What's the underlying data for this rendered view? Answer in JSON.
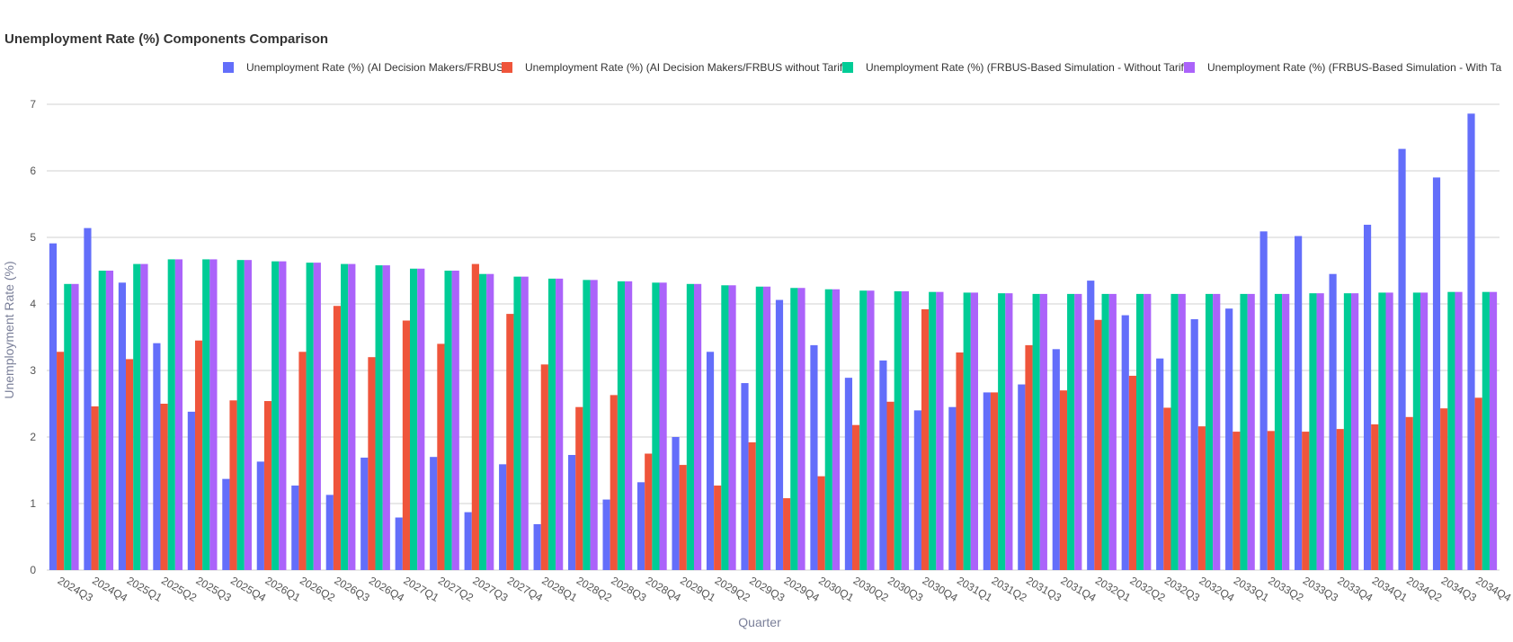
{
  "chart_data": {
    "type": "bar",
    "title": "Unemployment Rate (%) Components Comparison",
    "xlabel": "Quarter",
    "ylabel": "Unemployment Rate (%)",
    "ylim": [
      0,
      7
    ],
    "yticks": [
      "0",
      "1",
      "2",
      "3",
      "4",
      "5",
      "6",
      "7"
    ],
    "grid": true,
    "legend_position": "top",
    "categories": [
      "2024Q3",
      "2024Q4",
      "2025Q1",
      "2025Q2",
      "2025Q3",
      "2025Q4",
      "2026Q1",
      "2026Q2",
      "2026Q3",
      "2026Q4",
      "2027Q1",
      "2027Q2",
      "2027Q3",
      "2027Q4",
      "2028Q1",
      "2028Q2",
      "2028Q3",
      "2028Q4",
      "2029Q1",
      "2029Q2",
      "2029Q3",
      "2029Q4",
      "2030Q1",
      "2030Q2",
      "2030Q3",
      "2030Q4",
      "2031Q1",
      "2031Q2",
      "2031Q3",
      "2031Q4",
      "2032Q1",
      "2032Q2",
      "2032Q3",
      "2032Q4",
      "2033Q1",
      "2033Q2",
      "2033Q3",
      "2033Q4",
      "2034Q1",
      "2034Q2",
      "2034Q3",
      "2034Q4"
    ],
    "series": [
      {
        "name": "Unemployment Rate (%) (AI Decision Makers/FRBUS",
        "color": "#636efa",
        "values": [
          4.91,
          5.14,
          4.32,
          3.41,
          2.38,
          1.37,
          1.63,
          1.27,
          1.13,
          1.69,
          0.79,
          1.7,
          0.87,
          1.59,
          0.69,
          1.73,
          1.06,
          1.32,
          2.0,
          3.28,
          2.81,
          4.06,
          3.38,
          2.89,
          3.15,
          2.4,
          2.45,
          2.67,
          2.79,
          3.32,
          4.35,
          3.83,
          3.18,
          3.77,
          3.93,
          5.09,
          5.02,
          4.45,
          5.19,
          6.33,
          5.9,
          6.86
        ]
      },
      {
        "name": "Unemployment Rate (%) (AI Decision Makers/FRBUS without Tarif",
        "color": "#ef553b",
        "values": [
          3.28,
          2.46,
          3.17,
          2.5,
          3.45,
          2.55,
          2.54,
          3.28,
          3.97,
          3.2,
          3.75,
          3.4,
          4.6,
          3.85,
          3.09,
          2.45,
          2.63,
          1.75,
          1.58,
          1.27,
          1.92,
          1.08,
          1.41,
          2.18,
          2.53,
          3.92,
          3.27,
          2.67,
          3.38,
          2.7,
          3.76,
          2.92,
          2.44,
          2.16,
          2.08,
          2.09,
          2.08,
          2.12,
          2.19,
          2.3,
          2.43,
          2.59
        ]
      },
      {
        "name": "Unemployment Rate (%) (FRBUS-Based Simulation - Without Tarif",
        "color": "#00cc96",
        "values": [
          4.3,
          4.5,
          4.6,
          4.67,
          4.67,
          4.66,
          4.64,
          4.62,
          4.6,
          4.58,
          4.53,
          4.5,
          4.45,
          4.41,
          4.38,
          4.36,
          4.34,
          4.32,
          4.3,
          4.28,
          4.26,
          4.24,
          4.22,
          4.2,
          4.19,
          4.18,
          4.17,
          4.16,
          4.15,
          4.15,
          4.15,
          4.15,
          4.15,
          4.15,
          4.15,
          4.15,
          4.16,
          4.16,
          4.17,
          4.17,
          4.18,
          4.18
        ]
      },
      {
        "name": "Unemployment Rate (%) (FRBUS-Based Simulation - With Ta",
        "color": "#ab63fa",
        "values": [
          4.3,
          4.5,
          4.6,
          4.67,
          4.67,
          4.66,
          4.64,
          4.62,
          4.6,
          4.58,
          4.53,
          4.5,
          4.45,
          4.41,
          4.38,
          4.36,
          4.34,
          4.32,
          4.3,
          4.28,
          4.26,
          4.24,
          4.22,
          4.2,
          4.19,
          4.18,
          4.17,
          4.16,
          4.15,
          4.15,
          4.15,
          4.15,
          4.15,
          4.15,
          4.15,
          4.15,
          4.16,
          4.16,
          4.17,
          4.17,
          4.18,
          4.18
        ]
      }
    ]
  }
}
